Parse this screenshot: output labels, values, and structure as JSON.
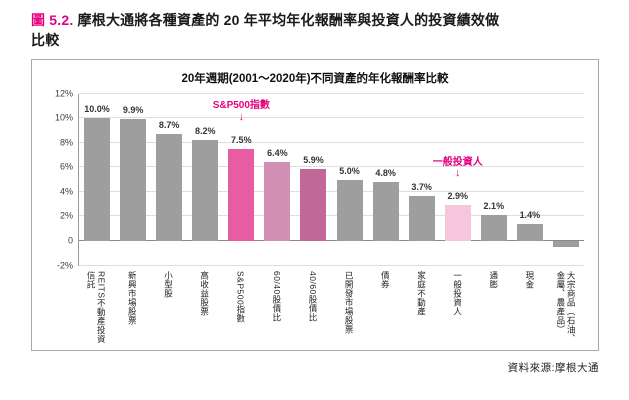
{
  "figure_title": {
    "prefix": "圖 5.2.",
    "line1": "摩根大通將各種資產的 20 年平均年化報酬率與投資人的投資績效做",
    "line2": "比較"
  },
  "source_note": "資料來源:摩根大通",
  "annotations": [
    {
      "id": "sp500-annotation",
      "text": "S&P500指數",
      "target_index": 4,
      "arrow": "↓"
    },
    {
      "id": "average-investor-annotation",
      "text": "一般投資人",
      "target_index": 10,
      "arrow": "↓"
    }
  ],
  "colors": {
    "accent": "#e6007f",
    "bar_default": "#9e9e9e",
    "bar_sp500": "#e75da2",
    "bar_60_40": "#d28fb4",
    "bar_40_60": "#c26899",
    "bar_investor": "#f6c6dd"
  },
  "chart_data": {
    "type": "bar",
    "title": "20年週期(2001〜2020年)不同資產的年化報酬率比較",
    "categories": [
      "REITS不動產投資信託",
      "新興市場股票",
      "小型股",
      "高收益股票",
      "S&P500指數",
      "60/40股債比",
      "40/60股債比",
      "已開發市場股票",
      "債券",
      "家庭不動產",
      "一般投資人",
      "通膨",
      "現金",
      "大宗商品（石油、金屬、農產品）"
    ],
    "values": [
      10.0,
      9.9,
      8.7,
      8.2,
      7.5,
      6.4,
      5.9,
      5.0,
      4.8,
      3.7,
      2.9,
      2.1,
      1.4,
      -0.5
    ],
    "value_labels": [
      "10.0%",
      "9.9%",
      "8.7%",
      "8.2%",
      "7.5%",
      "6.4%",
      "5.9%",
      "5.0%",
      "4.8%",
      "3.7%",
      "2.9%",
      "2.1%",
      "1.4%",
      ""
    ],
    "bar_colors": [
      "#9e9e9e",
      "#9e9e9e",
      "#9e9e9e",
      "#9e9e9e",
      "#e75da2",
      "#d28fb4",
      "#c26899",
      "#9e9e9e",
      "#9e9e9e",
      "#9e9e9e",
      "#f6c6dd",
      "#9e9e9e",
      "#9e9e9e",
      "#9e9e9e"
    ],
    "ylim": [
      -2,
      12
    ],
    "yticks": [
      12,
      10,
      8,
      6,
      4,
      2,
      0,
      -2
    ],
    "ytick_labels": [
      "12%",
      "10%",
      "8%",
      "6%",
      "4%",
      "2%",
      "0",
      "-2%"
    ],
    "grid": true,
    "legend": "none",
    "xlabel": "",
    "ylabel": ""
  }
}
